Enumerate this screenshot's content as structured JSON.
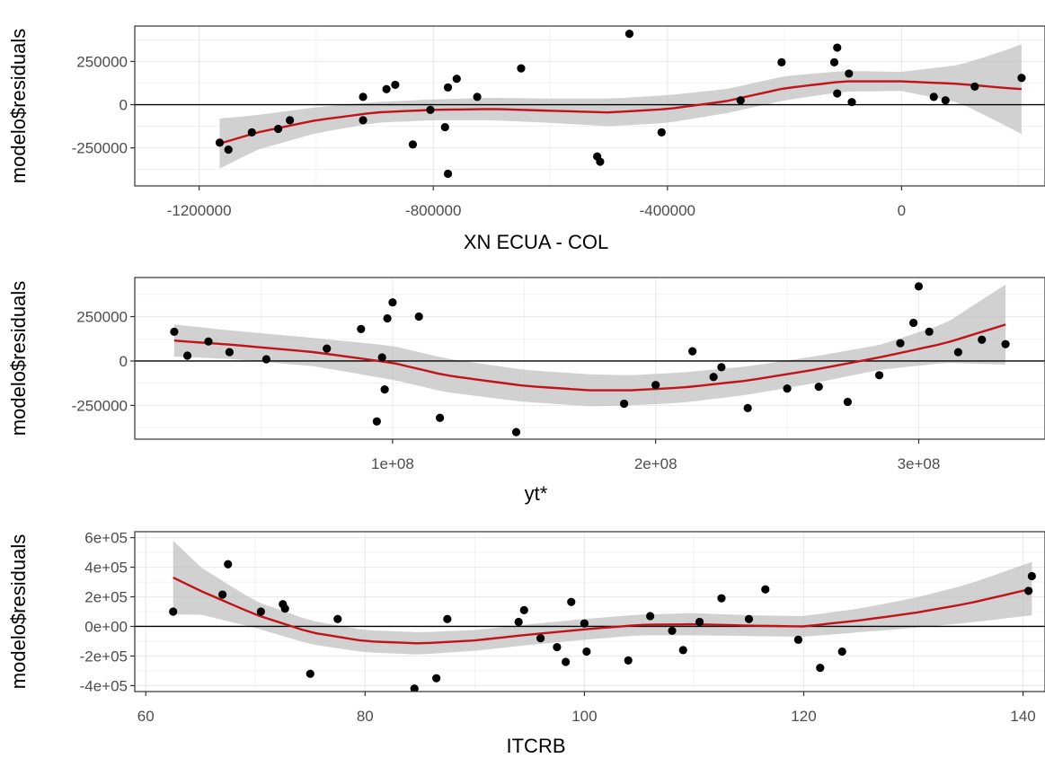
{
  "colors": {
    "panel_border": "#333333",
    "grid": "#ebebeb",
    "ribbon": "#bebebe",
    "smooth_line": "#c0141a",
    "point": "#000000",
    "zero_line": "#000000"
  },
  "chart_data": [
    {
      "type": "scatter",
      "xlabel": "XN ECUA - COL",
      "ylabel": "modelo$residuals",
      "x_ticks": [
        {
          "value": -1200000,
          "label": "-1200000"
        },
        {
          "value": -800000,
          "label": "-800000"
        },
        {
          "value": -400000,
          "label": "-400000"
        },
        {
          "value": 0,
          "label": "0"
        }
      ],
      "y_ticks": [
        {
          "value": -250000,
          "label": "-250000"
        },
        {
          "value": 0,
          "label": "0"
        },
        {
          "value": 250000,
          "label": "250000"
        }
      ],
      "xlim": [
        -1310000,
        245000
      ],
      "ylim": [
        -470000,
        455000
      ],
      "grid": true,
      "hline": 0,
      "points": [
        [
          -1165000,
          -220000
        ],
        [
          -1150000,
          -260000
        ],
        [
          -1110000,
          -160000
        ],
        [
          -1065000,
          -140000
        ],
        [
          -1045000,
          -90000
        ],
        [
          -920000,
          45000
        ],
        [
          -920000,
          -90000
        ],
        [
          -880000,
          90000
        ],
        [
          -865000,
          115000
        ],
        [
          -835000,
          -230000
        ],
        [
          -805000,
          -30000
        ],
        [
          -780000,
          -130000
        ],
        [
          -775000,
          100000
        ],
        [
          -775000,
          -400000
        ],
        [
          -760000,
          150000
        ],
        [
          -725000,
          45000
        ],
        [
          -650000,
          210000
        ],
        [
          -520000,
          -300000
        ],
        [
          -515000,
          -330000
        ],
        [
          -465000,
          410000
        ],
        [
          -410000,
          -160000
        ],
        [
          -275000,
          25000
        ],
        [
          -205000,
          245000
        ],
        [
          -115000,
          245000
        ],
        [
          -110000,
          330000
        ],
        [
          -110000,
          65000
        ],
        [
          -90000,
          180000
        ],
        [
          -85000,
          15000
        ],
        [
          55000,
          45000
        ],
        [
          75000,
          25000
        ],
        [
          125000,
          105000
        ],
        [
          205000,
          155000
        ]
      ],
      "smooth": [
        [
          -1165000,
          -225000
        ],
        [
          -1100000,
          -160000
        ],
        [
          -1000000,
          -90000
        ],
        [
          -900000,
          -45000
        ],
        [
          -800000,
          -30000
        ],
        [
          -700000,
          -25000
        ],
        [
          -600000,
          -35000
        ],
        [
          -500000,
          -45000
        ],
        [
          -400000,
          -25000
        ],
        [
          -300000,
          20000
        ],
        [
          -200000,
          95000
        ],
        [
          -100000,
          135000
        ],
        [
          0,
          135000
        ],
        [
          100000,
          120000
        ],
        [
          200000,
          90000
        ],
        [
          205000,
          90000
        ]
      ],
      "ribbon_halfwidth": [
        [
          -1165000,
          145000
        ],
        [
          -1100000,
          100000
        ],
        [
          -1000000,
          75000
        ],
        [
          -900000,
          60000
        ],
        [
          -800000,
          60000
        ],
        [
          -700000,
          65000
        ],
        [
          -600000,
          70000
        ],
        [
          -500000,
          80000
        ],
        [
          -400000,
          80000
        ],
        [
          -300000,
          70000
        ],
        [
          -200000,
          70000
        ],
        [
          -100000,
          60000
        ],
        [
          0,
          55000
        ],
        [
          100000,
          110000
        ],
        [
          200000,
          250000
        ],
        [
          205000,
          260000
        ]
      ]
    },
    {
      "type": "scatter",
      "xlabel": "yt*",
      "ylabel": "modelo$residuals",
      "x_ticks": [
        {
          "value": 100000000,
          "label": "1e+08"
        },
        {
          "value": 200000000,
          "label": "2e+08"
        },
        {
          "value": 300000000,
          "label": "3e+08"
        }
      ],
      "y_ticks": [
        {
          "value": -250000,
          "label": "-250000"
        },
        {
          "value": 0,
          "label": "0"
        },
        {
          "value": 250000,
          "label": "250000"
        }
      ],
      "xlim": [
        2000000,
        348000000
      ],
      "ylim": [
        -440000,
        470000
      ],
      "grid": true,
      "hline": 0,
      "points": [
        [
          17000000,
          165000
        ],
        [
          22000000,
          30000
        ],
        [
          30000000,
          110000
        ],
        [
          38000000,
          50000
        ],
        [
          52000000,
          10000
        ],
        [
          75000000,
          70000
        ],
        [
          88000000,
          180000
        ],
        [
          94000000,
          -340000
        ],
        [
          96000000,
          20000
        ],
        [
          97000000,
          -160000
        ],
        [
          98000000,
          240000
        ],
        [
          100000000,
          330000
        ],
        [
          110000000,
          250000
        ],
        [
          118000000,
          -320000
        ],
        [
          147000000,
          -400000
        ],
        [
          188000000,
          -240000
        ],
        [
          200000000,
          -135000
        ],
        [
          214000000,
          55000
        ],
        [
          222000000,
          -90000
        ],
        [
          225000000,
          -35000
        ],
        [
          235000000,
          -265000
        ],
        [
          250000000,
          -155000
        ],
        [
          262000000,
          -145000
        ],
        [
          273000000,
          -230000
        ],
        [
          285000000,
          -80000
        ],
        [
          293000000,
          100000
        ],
        [
          298000000,
          215000
        ],
        [
          300000000,
          420000
        ],
        [
          304000000,
          165000
        ],
        [
          315000000,
          50000
        ],
        [
          324000000,
          120000
        ],
        [
          333000000,
          95000
        ]
      ],
      "smooth": [
        [
          17000000,
          115000
        ],
        [
          40000000,
          90000
        ],
        [
          70000000,
          50000
        ],
        [
          100000000,
          -10000
        ],
        [
          120000000,
          -80000
        ],
        [
          150000000,
          -140000
        ],
        [
          175000000,
          -165000
        ],
        [
          190000000,
          -165000
        ],
        [
          210000000,
          -150000
        ],
        [
          235000000,
          -110000
        ],
        [
          260000000,
          -50000
        ],
        [
          285000000,
          20000
        ],
        [
          310000000,
          100000
        ],
        [
          333000000,
          205000
        ]
      ],
      "ribbon_halfwidth": [
        [
          17000000,
          90000
        ],
        [
          40000000,
          80000
        ],
        [
          70000000,
          80000
        ],
        [
          100000000,
          95000
        ],
        [
          120000000,
          95000
        ],
        [
          150000000,
          90000
        ],
        [
          175000000,
          90000
        ],
        [
          190000000,
          85000
        ],
        [
          210000000,
          85000
        ],
        [
          235000000,
          80000
        ],
        [
          260000000,
          75000
        ],
        [
          285000000,
          70000
        ],
        [
          310000000,
          110000
        ],
        [
          333000000,
          225000
        ]
      ]
    },
    {
      "type": "scatter",
      "xlabel": "ITCRB",
      "ylabel": "modelo$residuals",
      "x_ticks": [
        {
          "value": 60,
          "label": "60"
        },
        {
          "value": 80,
          "label": "80"
        },
        {
          "value": 100,
          "label": "100"
        },
        {
          "value": 120,
          "label": "120"
        },
        {
          "value": 140,
          "label": "140"
        }
      ],
      "y_ticks": [
        {
          "value": -400000,
          "label": "-4e+05"
        },
        {
          "value": -200000,
          "label": "-2e+05"
        },
        {
          "value": 0,
          "label": "0e+00"
        },
        {
          "value": 200000,
          "label": "2e+05"
        },
        {
          "value": 400000,
          "label": "4e+05"
        },
        {
          "value": 600000,
          "label": "6e+05"
        }
      ],
      "xlim": [
        59,
        142
      ],
      "ylim": [
        -440000,
        640000
      ],
      "grid": true,
      "hline": 0,
      "points": [
        [
          62.5,
          100000
        ],
        [
          67,
          215000
        ],
        [
          67.5,
          420000
        ],
        [
          70.5,
          100000
        ],
        [
          72.5,
          150000
        ],
        [
          72.7,
          120000
        ],
        [
          75,
          -320000
        ],
        [
          77.5,
          50000
        ],
        [
          84.5,
          -420000
        ],
        [
          86.5,
          -350000
        ],
        [
          87.5,
          50000
        ],
        [
          94,
          30000
        ],
        [
          94.5,
          110000
        ],
        [
          96,
          -80000
        ],
        [
          97.5,
          -140000
        ],
        [
          98.3,
          -240000
        ],
        [
          98.8,
          165000
        ],
        [
          100,
          20000
        ],
        [
          100.2,
          -170000
        ],
        [
          104,
          -230000
        ],
        [
          106,
          70000
        ],
        [
          108,
          -30000
        ],
        [
          109,
          -160000
        ],
        [
          110.5,
          30000
        ],
        [
          112.5,
          190000
        ],
        [
          115,
          50000
        ],
        [
          116.5,
          250000
        ],
        [
          119.5,
          -90000
        ],
        [
          121.5,
          -280000
        ],
        [
          123.5,
          -170000
        ],
        [
          140.5,
          240000
        ],
        [
          140.8,
          340000
        ]
      ],
      "smooth": [
        [
          62.5,
          330000
        ],
        [
          65,
          240000
        ],
        [
          70,
          80000
        ],
        [
          75,
          -40000
        ],
        [
          80,
          -100000
        ],
        [
          85,
          -115000
        ],
        [
          90,
          -95000
        ],
        [
          95,
          -55000
        ],
        [
          100,
          -20000
        ],
        [
          105,
          10000
        ],
        [
          110,
          15000
        ],
        [
          115,
          5000
        ],
        [
          120,
          0
        ],
        [
          125,
          40000
        ],
        [
          130,
          90000
        ],
        [
          135,
          155000
        ],
        [
          140.8,
          255000
        ]
      ],
      "ribbon_halfwidth": [
        [
          62.5,
          250000
        ],
        [
          65,
          160000
        ],
        [
          70,
          90000
        ],
        [
          75,
          80000
        ],
        [
          80,
          75000
        ],
        [
          85,
          75000
        ],
        [
          90,
          70000
        ],
        [
          95,
          70000
        ],
        [
          100,
          70000
        ],
        [
          105,
          70000
        ],
        [
          110,
          75000
        ],
        [
          115,
          70000
        ],
        [
          120,
          70000
        ],
        [
          125,
          80000
        ],
        [
          130,
          100000
        ],
        [
          135,
          130000
        ],
        [
          140.8,
          180000
        ]
      ]
    }
  ]
}
